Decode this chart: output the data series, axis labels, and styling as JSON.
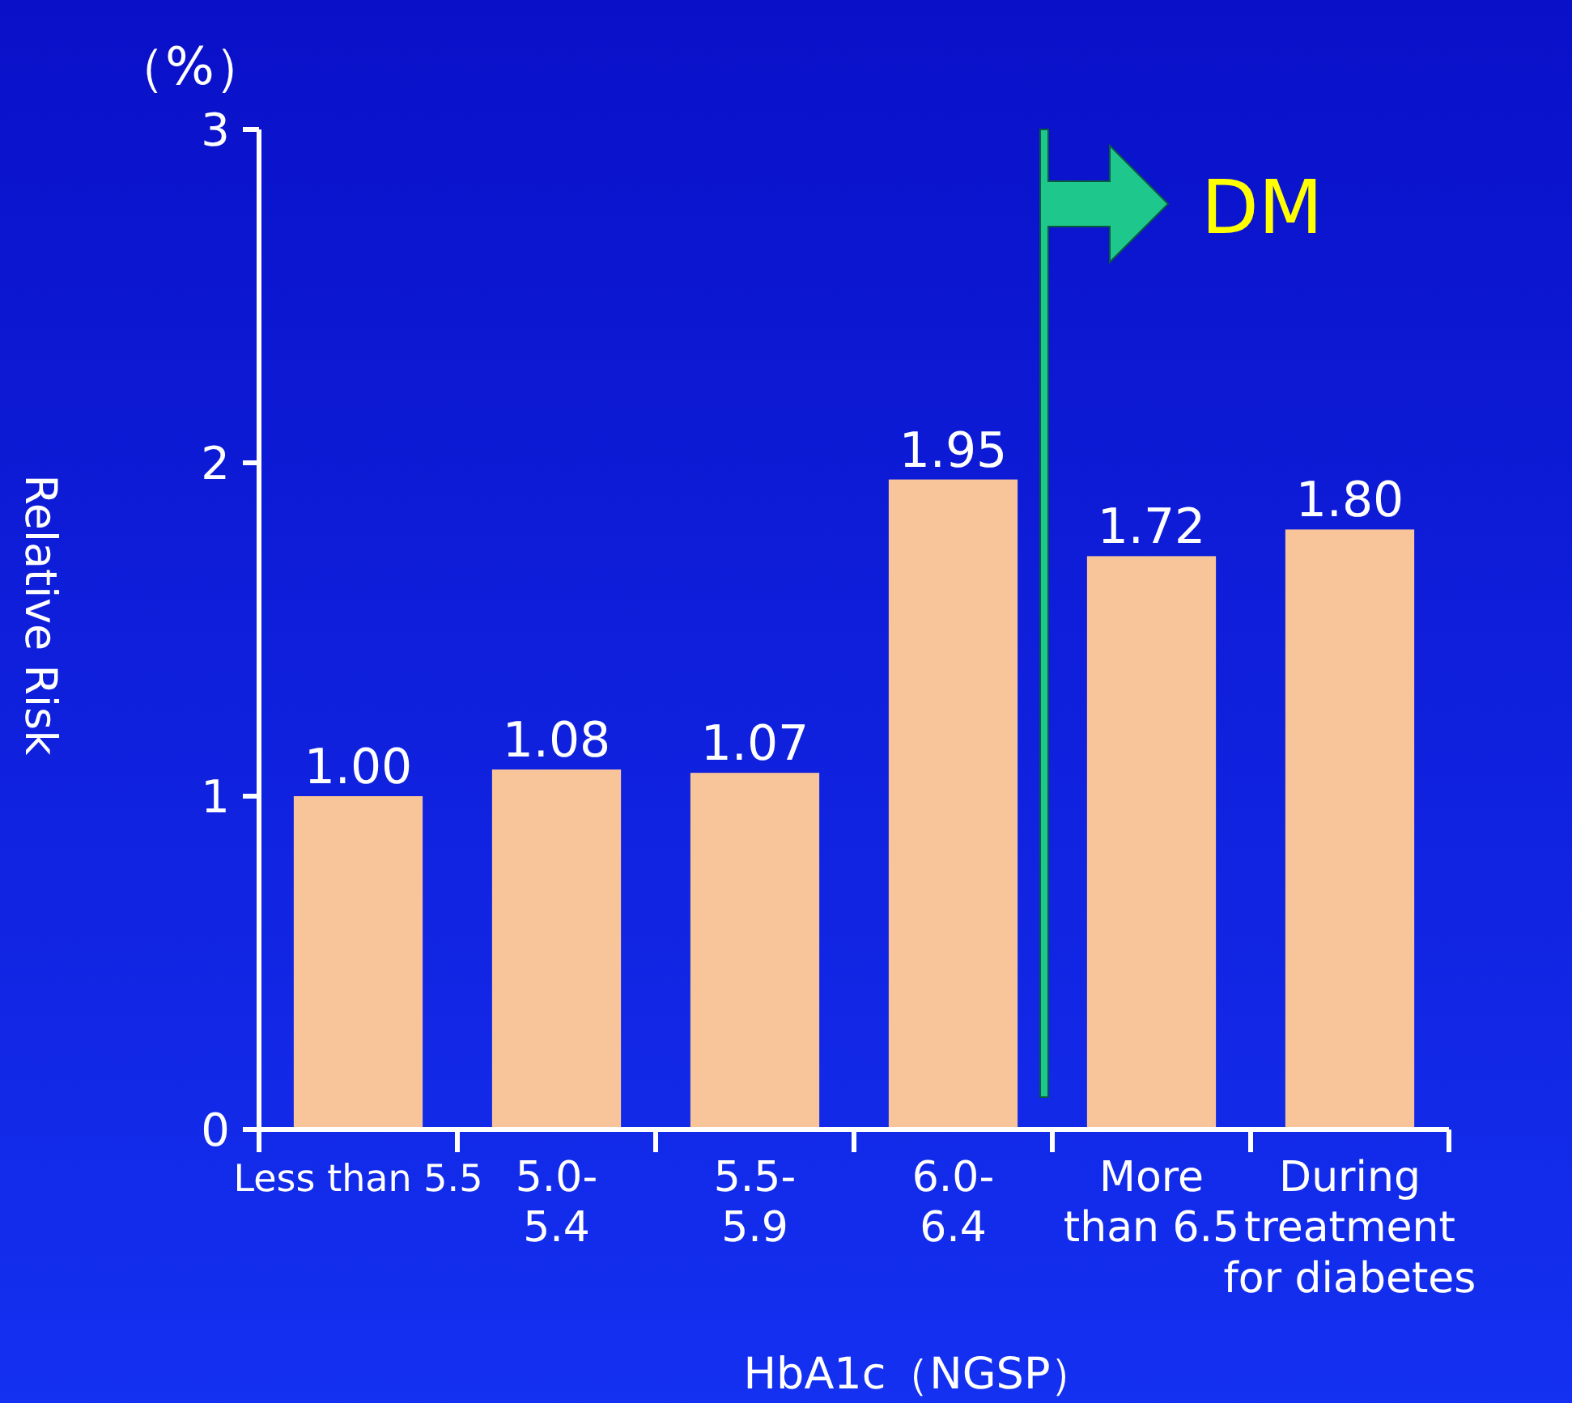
{
  "chart_data": {
    "type": "bar",
    "categories": [
      "Less than 5.5",
      "5.0-\n5.4",
      "5.5-\n5.9",
      "6.0-\n6.4",
      "More\nthan 6.5",
      "During\ntreatment\nfor diabetes"
    ],
    "values": [
      1.0,
      1.08,
      1.07,
      1.95,
      1.72,
      1.8
    ],
    "value_labels": [
      "1.00",
      "1.08",
      "1.07",
      "1.95",
      "1.72",
      "1.80"
    ],
    "color": "#f8c49a",
    "ylabel": "Relative Risk",
    "xlabel": "HbA1c（NGSP）",
    "annotations": [
      "（%）",
      "DM"
    ],
    "ylim": [
      0,
      3
    ],
    "yticks": [
      0,
      1,
      2,
      3
    ],
    "grid": false
  }
}
